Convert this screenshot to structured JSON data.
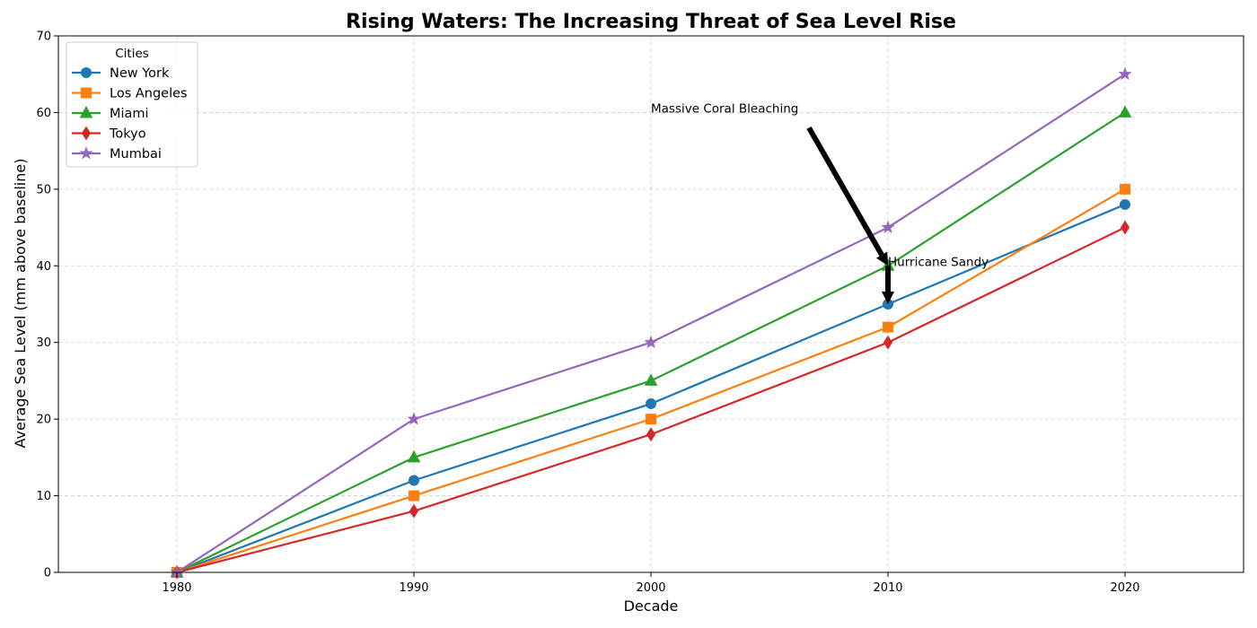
{
  "chart_data": {
    "type": "line",
    "title": "Rising Waters: The Increasing Threat of Sea Level Rise",
    "xlabel": "Decade",
    "ylabel": "Average Sea Level (mm above baseline)",
    "x": [
      1980,
      1990,
      2000,
      2010,
      2020
    ],
    "xlim": [
      1975,
      2025
    ],
    "ylim": [
      0,
      70
    ],
    "xticks": [
      1980,
      1990,
      2000,
      2010,
      2020
    ],
    "yticks": [
      0,
      10,
      20,
      30,
      40,
      50,
      60,
      70
    ],
    "grid": true,
    "legend": {
      "title": "Cities",
      "placement": "top-left"
    },
    "series": [
      {
        "name": "New York",
        "values": [
          0,
          12,
          22,
          35,
          48
        ],
        "color": "#1f77b4",
        "marker": "circle"
      },
      {
        "name": "Los Angeles",
        "values": [
          0,
          10,
          20,
          32,
          50
        ],
        "color": "#ff7f0e",
        "marker": "square"
      },
      {
        "name": "Miami",
        "values": [
          0,
          15,
          25,
          40,
          60
        ],
        "color": "#2ca02c",
        "marker": "triangle"
      },
      {
        "name": "Tokyo",
        "values": [
          0,
          8,
          18,
          30,
          45
        ],
        "color": "#d62728",
        "marker": "diamond"
      },
      {
        "name": "Mumbai",
        "values": [
          0,
          20,
          30,
          45,
          65
        ],
        "color": "#9467bd",
        "marker": "star"
      }
    ],
    "annotations": [
      {
        "text": "Hurricane Sandy",
        "x": 2010,
        "y": 35,
        "text_x": 2010,
        "text_y": 40
      },
      {
        "text": "Massive Coral Bleaching",
        "x": 2010,
        "y": 40,
        "text_x": 2000,
        "text_y": 60
      }
    ]
  }
}
